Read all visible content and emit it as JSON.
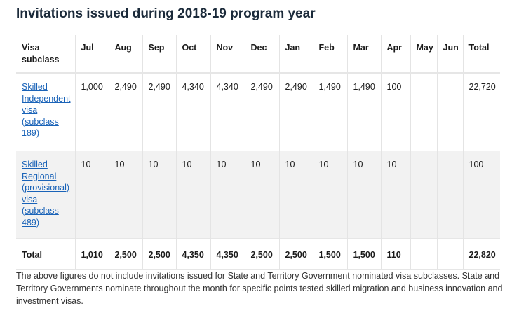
{
  "title": "Invitations issued during 2018-19 program year",
  "table": {
    "headers": [
      "Visa subclass",
      "Jul",
      "Aug",
      "Sep",
      "Oct",
      "Nov",
      "Dec",
      "Jan",
      "Feb",
      "Mar",
      "Apr",
      "May",
      "Jun",
      "Total"
    ],
    "rows": [
      {
        "label": "Skilled Independent visa (subclass 189)",
        "values": [
          "1,000",
          "2,490",
          "2,490",
          "4,340",
          "4,340",
          "2,490",
          "2,490",
          "1,490",
          "1,490",
          "100",
          "",
          "",
          "22,720"
        ]
      },
      {
        "label": "Skilled Regional (provisional) visa (subclass 489)",
        "values": [
          "10",
          "10",
          "10",
          "10",
          "10",
          "10",
          "10",
          "10",
          "10",
          "10",
          "",
          "",
          "100"
        ]
      }
    ],
    "total": {
      "label": "Total",
      "values": [
        "1,010",
        "2,500",
        "2,500",
        "4,350",
        "4,350",
        "2,500",
        "2,500",
        "1,500",
        "1,500",
        "110",
        "",
        "",
        "22,820"
      ]
    }
  },
  "note": "The above figures do not include invitations issued for State and Territory Government nominated visa subclasses. State and Territory Governments nominate throughout the month for specific points tested skilled migration and business innovation and investment visas."
}
